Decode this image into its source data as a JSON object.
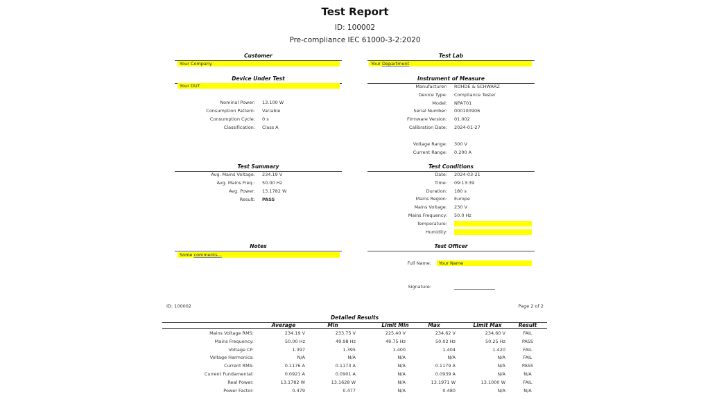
{
  "header": {
    "title": "Test Report",
    "id": "ID: 100002",
    "standard": "Pre-compliance IEC 61000-3-2:2020"
  },
  "customer": {
    "title": "Customer",
    "value": "Your Company"
  },
  "test_lab": {
    "title": "Test Lab",
    "value_prefix": "Your ",
    "value_link": "Department"
  },
  "dut": {
    "title": "Device Under Test",
    "value": "Your DUT",
    "rows": [
      {
        "label": "Nominal Power:",
        "value": "13.100 W"
      },
      {
        "label": "Consumption Pattern:",
        "value": "Variable"
      },
      {
        "label": "Consumption Cycle:",
        "value": "0 s"
      },
      {
        "label": "Classification:",
        "value": "Class A"
      }
    ]
  },
  "instrument": {
    "title": "Instrument of Measure",
    "rows": [
      {
        "label": "Manufacturer:",
        "value": "ROHDE & SCHWARZ"
      },
      {
        "label": "Device Type:",
        "value": "Compliance Tester"
      },
      {
        "label": "Model:",
        "value": "NPA701"
      },
      {
        "label": "Serial Number:",
        "value": "000100906"
      },
      {
        "label": "Firmware Version:",
        "value": "01.002"
      },
      {
        "label": "Calibration Date:",
        "value": "2024-01-27"
      }
    ],
    "rows2": [
      {
        "label": "Voltage Range:",
        "value": "300 V"
      },
      {
        "label": "Current Range:",
        "value": "0.200 A"
      }
    ]
  },
  "summary": {
    "title": "Test Summary",
    "rows": [
      {
        "label": "Avg. Mains Voltage:",
        "value": "234.19 V"
      },
      {
        "label": "Avg. Mains Freq.:",
        "value": "50.00 Hz"
      },
      {
        "label": "Avg. Power:",
        "value": "13.1782 W"
      },
      {
        "label": "Result:",
        "value": "PASS"
      }
    ]
  },
  "conditions": {
    "title": "Test Conditions",
    "rows": [
      {
        "label": "Date:",
        "value": "2024-03-21"
      },
      {
        "label": "Time:",
        "value": "09:13:39"
      },
      {
        "label": "Duration:",
        "value": "180 s"
      },
      {
        "label": "Mains Region:",
        "value": "Europe"
      },
      {
        "label": "Mains Voltage:",
        "value": "230 V"
      },
      {
        "label": "Mains Frequency:",
        "value": "50.0 Hz"
      }
    ],
    "temperature_label": "Temperature:",
    "humidity_label": "Humidity:"
  },
  "notes": {
    "title": "Notes",
    "prefix": "Some ",
    "link": "comments..."
  },
  "officer": {
    "title": "Test Officer",
    "name_label": "Full Name:",
    "name_value": "Your Name",
    "signature_label": "Signature:"
  },
  "page2": {
    "id": "ID: 100002",
    "page": "Page 2 of 2"
  },
  "results": {
    "title": "Detailed Results",
    "columns": [
      "Average",
      "Min",
      "Limit Min",
      "Max",
      "Limit Max",
      "Result"
    ],
    "rows": [
      {
        "label": "Mains Voltage RMS:",
        "cells": [
          "234.19 V",
          "233.75 V",
          "225.40 V",
          "234.62 V",
          "234.60 V",
          "FAIL"
        ]
      },
      {
        "label": "Mains Frequency:",
        "cells": [
          "50.00 Hz",
          "49.98 Hz",
          "49.75 Hz",
          "50.02 Hz",
          "50.25 Hz",
          "PASS"
        ]
      },
      {
        "label": "Voltage CF:",
        "cells": [
          "1.397",
          "1.395",
          "1.400",
          "1.404",
          "1.420",
          "FAIL"
        ]
      },
      {
        "label": "Voltage Harmonics:",
        "cells": [
          "N/A",
          "N/A",
          "N/A",
          "N/A",
          "N/A",
          "FAIL"
        ]
      },
      {
        "label": "Current RMS:",
        "cells": [
          "0.1176 A",
          "0.1173 A",
          "N/A",
          "0.1179 A",
          "N/A",
          "PASS"
        ]
      },
      {
        "label": "Current Fundamental:",
        "cells": [
          "0.0921 A",
          "0.0901 A",
          "N/A",
          "0.0939 A",
          "N/A",
          "N/A"
        ]
      },
      {
        "label": "Real Power:",
        "cells": [
          "13.1782 W",
          "13.1628 W",
          "N/A",
          "13.1971 W",
          "13.1000 W",
          "FAIL"
        ]
      },
      {
        "label": "Power Factor:",
        "cells": [
          "0.479",
          "0.477",
          "N/A",
          "0.480",
          "N/A",
          "N/A"
        ]
      }
    ]
  },
  "colors": {
    "highlight": "#ffff00",
    "text": "#222222"
  }
}
